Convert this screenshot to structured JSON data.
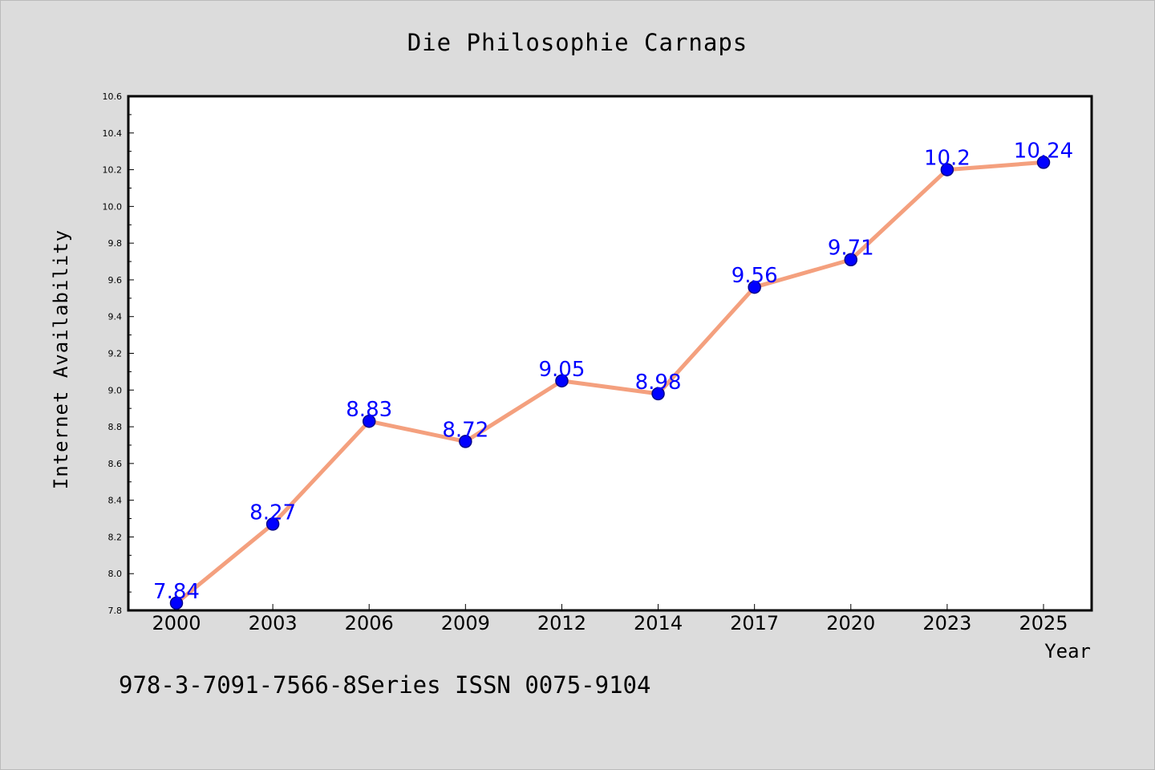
{
  "chart_data": {
    "type": "line",
    "title": "Die Philosophie Carnaps",
    "xlabel": "Year",
    "ylabel": "Internet Availability",
    "categories": [
      "2000",
      "2003",
      "2006",
      "2009",
      "2012",
      "2014",
      "2017",
      "2020",
      "2023",
      "2025"
    ],
    "values": [
      7.84,
      8.27,
      8.83,
      8.72,
      9.05,
      8.98,
      9.56,
      9.71,
      10.2,
      10.24
    ],
    "data_labels": [
      "7.84",
      "8.27",
      "8.83",
      "8.72",
      "9.05",
      "8.98",
      "9.56",
      "9.71",
      "10.2",
      "10.24"
    ],
    "ylim": [
      7.8,
      10.6
    ],
    "yticks": [
      "7.8",
      "8.0",
      "8.2",
      "8.4",
      "8.6",
      "8.8",
      "9.0",
      "9.2",
      "9.4",
      "9.6",
      "9.8",
      "10.0",
      "10.2",
      "10.4",
      "10.6"
    ],
    "grid": false,
    "legend": "none",
    "colors": {
      "line": "#f4a07e",
      "marker": "#0000ff",
      "marker_edge": "#00008b",
      "label": "#0000ff",
      "background": "#dcdcdc",
      "plot_background": "#ffffff"
    }
  },
  "footer": {
    "text": "978-3-7091-7566-8Series ISSN 0075-9104"
  }
}
